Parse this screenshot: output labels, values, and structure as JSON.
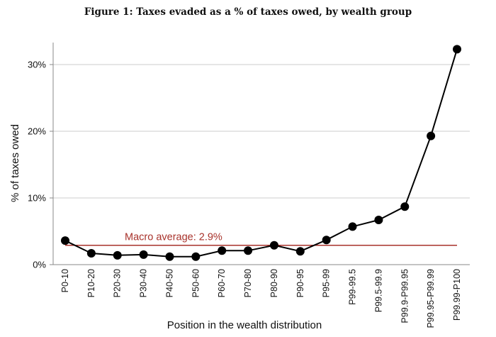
{
  "figure_title": "Figure 1: Taxes evaded as a % of taxes owed, by wealth group",
  "colors": {
    "line": "#000000",
    "average": "#a8322b",
    "grid": "#cccccc",
    "axis": "#888888"
  },
  "chart_data": {
    "type": "line",
    "title": "Figure 1: Taxes evaded as a % of taxes owed, by wealth group",
    "xlabel": "Position in the wealth distribution",
    "ylabel": "% of taxes owed",
    "ylim": [
      0,
      32
    ],
    "yticks": [
      0,
      10,
      20,
      30
    ],
    "ytick_labels": [
      "0%",
      "10%",
      "20%",
      "30%"
    ],
    "grid": "horizontal",
    "categories": [
      "P0-10",
      "P10-20",
      "P20-30",
      "P30-40",
      "P40-50",
      "P50-60",
      "P60-70",
      "P70-80",
      "P80-90",
      "P90-95",
      "P95-99",
      "P99-99.5",
      "P99.5-99.9",
      "P99.9-P99.95",
      "P99.95-P99.99",
      "P99.99-P100"
    ],
    "series": [
      {
        "values": [
          3.6,
          1.7,
          1.4,
          1.5,
          1.2,
          1.2,
          2.1,
          2.1,
          2.9,
          2.0,
          3.7,
          5.7,
          6.7,
          8.7,
          19.3,
          32.3
        ]
      }
    ],
    "reference_line": {
      "label": "Macro average: 2.9%",
      "value": 2.9
    }
  }
}
